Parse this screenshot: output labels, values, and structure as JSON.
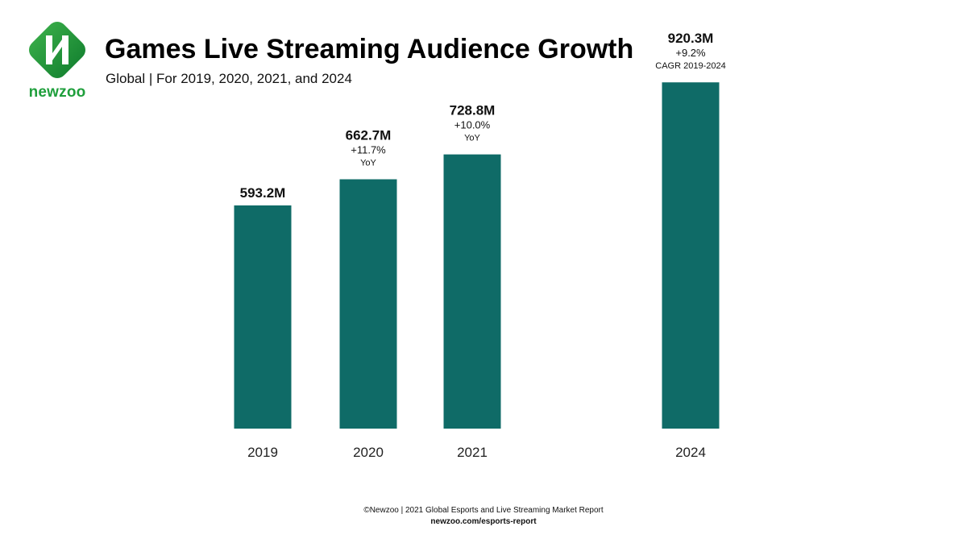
{
  "brand": {
    "name": "newzoo",
    "logo_icon": "newzoo-logo-icon",
    "colors": {
      "green_dark": "#0e7a2c",
      "green_light": "#3fb44d",
      "wordmark": "#1f9f3c"
    }
  },
  "header": {
    "title": "Games Live Streaming Audience Growth",
    "subtitle": "Global | For 2019, 2020, 2021, and 2024"
  },
  "chart_data": {
    "type": "bar",
    "categories": [
      "2019",
      "2020",
      "2021",
      "2024"
    ],
    "values": [
      593.2,
      662.7,
      728.8,
      920.3
    ],
    "unit": "M",
    "value_labels": [
      "593.2M",
      "662.7M",
      "728.8M",
      "920.3M"
    ],
    "growth_labels": [
      "",
      "+11.7%",
      "+10.0%",
      "+9.2%"
    ],
    "growth_notes": [
      "",
      "YoY",
      "YoY",
      "CAGR 2019-2024"
    ],
    "title": "",
    "xlabel": "",
    "ylabel": "",
    "ylim": [
      0,
      1000
    ],
    "grid": false,
    "legend": "none",
    "bar_color": "#0f6b67"
  },
  "footer": {
    "source": "©Newzoo | 2021 Global Esports and Live Streaming Market Report",
    "url": "newzoo.com/esports-report"
  }
}
